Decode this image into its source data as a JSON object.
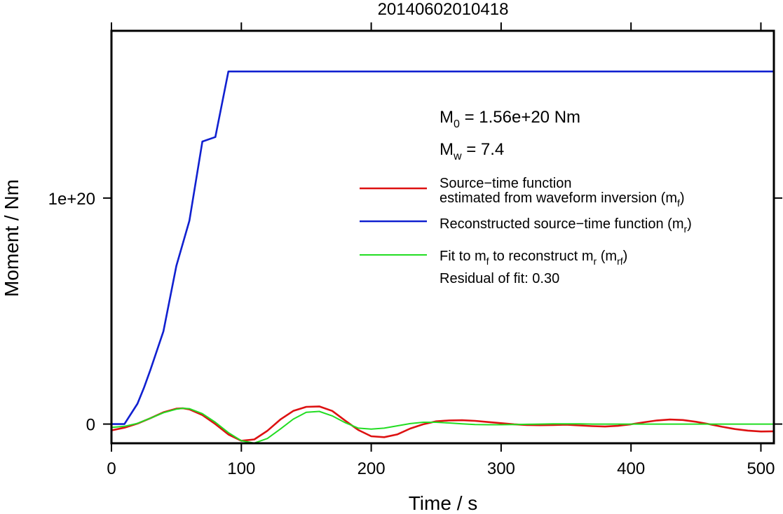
{
  "chart_data": {
    "type": "line",
    "title": "20140602010418",
    "xlabel": "Time / s",
    "ylabel": "Moment / Nm",
    "xlim": [
      0,
      510
    ],
    "ylim": [
      -8.5e+18,
      1.74e+20
    ],
    "grid": false,
    "legend_position": "right",
    "x_ticks": [
      {
        "value": 0,
        "label": "0"
      },
      {
        "value": 100,
        "label": "100"
      },
      {
        "value": 200,
        "label": "200"
      },
      {
        "value": 300,
        "label": "300"
      },
      {
        "value": 400,
        "label": "400"
      },
      {
        "value": 500,
        "label": "500"
      }
    ],
    "y_ticks": [
      {
        "value": 0,
        "label": "0"
      },
      {
        "value": 1e+20,
        "label": "1e+20"
      }
    ],
    "annotations": {
      "m0": {
        "sym": "M",
        "sub": "0",
        "rest": " = 1.56e+20 Nm"
      },
      "mw": {
        "sym": "M",
        "sub": "w",
        "rest": " = 7.4"
      },
      "residual": "Residual of fit: 0.30"
    },
    "series": [
      {
        "id": "red",
        "color": "#dd1111",
        "legend": [
          [
            {
              "t": "Source−time function"
            }
          ],
          [
            {
              "t": "estimated from waveform inversion (m"
            },
            {
              "t": "f",
              "sub": true
            },
            {
              "t": ")"
            }
          ]
        ],
        "points": [
          [
            0,
            -2.8e+18
          ],
          [
            10,
            -1.6e+18
          ],
          [
            20,
            2e+17
          ],
          [
            30,
            2.6e+18
          ],
          [
            40,
            5.2e+18
          ],
          [
            50,
            6.8e+18
          ],
          [
            55,
            7e+18
          ],
          [
            60,
            6.5e+18
          ],
          [
            70,
            4e+18
          ],
          [
            80,
            0
          ],
          [
            90,
            -4.6e+18
          ],
          [
            100,
            -7.4e+18
          ],
          [
            110,
            -6.8e+18
          ],
          [
            120,
            -3e+18
          ],
          [
            130,
            2e+18
          ],
          [
            140,
            5.8e+18
          ],
          [
            150,
            7.6e+18
          ],
          [
            160,
            7.8e+18
          ],
          [
            170,
            5.8e+18
          ],
          [
            180,
            1.5e+18
          ],
          [
            190,
            -2.6e+18
          ],
          [
            200,
            -5.4e+18
          ],
          [
            210,
            -5.8e+18
          ],
          [
            220,
            -4.6e+18
          ],
          [
            230,
            -2e+18
          ],
          [
            240,
            -1e+17
          ],
          [
            250,
            1.2e+18
          ],
          [
            260,
            1.6e+18
          ],
          [
            270,
            1.7e+18
          ],
          [
            280,
            1.4e+18
          ],
          [
            290,
            9e+17
          ],
          [
            300,
            4e+17
          ],
          [
            310,
            -1e+17
          ],
          [
            320,
            -4e+17
          ],
          [
            330,
            -5e+17
          ],
          [
            340,
            -4e+17
          ],
          [
            350,
            -3e+17
          ],
          [
            360,
            -6e+17
          ],
          [
            370,
            -9e+17
          ],
          [
            380,
            -1.1e+18
          ],
          [
            390,
            -8e+17
          ],
          [
            400,
            -1e+17
          ],
          [
            410,
            8e+17
          ],
          [
            420,
            1.6e+18
          ],
          [
            430,
            2e+18
          ],
          [
            440,
            1.8e+18
          ],
          [
            450,
            1e+18
          ],
          [
            460,
            0
          ],
          [
            470,
            -1.2e+18
          ],
          [
            480,
            -2.2e+18
          ],
          [
            490,
            -2.9e+18
          ],
          [
            500,
            -3.3e+18
          ],
          [
            510,
            -3.2e+18
          ]
        ]
      },
      {
        "id": "blue",
        "color": "#1020d0",
        "legend": [
          [
            {
              "t": "Reconstructed source−time function (m"
            },
            {
              "t": "r",
              "sub": true
            },
            {
              "t": ")"
            }
          ]
        ],
        "points": [
          [
            0,
            0
          ],
          [
            10,
            0
          ],
          [
            20,
            9e+18
          ],
          [
            25,
            1.6e+19
          ],
          [
            30,
            2.4e+19
          ],
          [
            40,
            4.1e+19
          ],
          [
            50,
            7e+19
          ],
          [
            60,
            9e+19
          ],
          [
            70,
            1.25e+20
          ],
          [
            80,
            1.27e+20
          ],
          [
            90,
            1.56e+20
          ],
          [
            510,
            1.56e+20
          ]
        ]
      },
      {
        "id": "green",
        "color": "#22dd22",
        "legend": [
          [
            {
              "t": "Fit to m"
            },
            {
              "t": "f",
              "sub": true
            },
            {
              "t": " to reconstruct m"
            },
            {
              "t": "r",
              "sub": true
            },
            {
              "t": " (m"
            },
            {
              "t": "rf",
              "sub": true
            },
            {
              "t": ")"
            }
          ]
        ],
        "points": [
          [
            0,
            -1.5e+18
          ],
          [
            10,
            -1e+18
          ],
          [
            20,
            3e+17
          ],
          [
            30,
            2.6e+18
          ],
          [
            40,
            5e+18
          ],
          [
            50,
            6.6e+18
          ],
          [
            55,
            7e+18
          ],
          [
            60,
            6.8e+18
          ],
          [
            70,
            4.6e+18
          ],
          [
            80,
            8e+17
          ],
          [
            90,
            -3.8e+18
          ],
          [
            100,
            -7.4e+18
          ],
          [
            110,
            -8.4e+18
          ],
          [
            120,
            -6.4e+18
          ],
          [
            130,
            -2.2e+18
          ],
          [
            140,
            2.2e+18
          ],
          [
            150,
            5.2e+18
          ],
          [
            160,
            5.6e+18
          ],
          [
            170,
            3.6e+18
          ],
          [
            180,
            6e+17
          ],
          [
            190,
            -1.8e+18
          ],
          [
            200,
            -2.2e+18
          ],
          [
            210,
            -1.8e+18
          ],
          [
            220,
            -8e+17
          ],
          [
            230,
            2e+17
          ],
          [
            240,
            8e+17
          ],
          [
            250,
            8e+17
          ],
          [
            260,
            5e+17
          ],
          [
            270,
            1e+17
          ],
          [
            280,
            -2e+17
          ],
          [
            290,
            -3e+17
          ],
          [
            300,
            -3e+17
          ],
          [
            310,
            -2e+17
          ],
          [
            320,
            -1e+17
          ],
          [
            330,
            0
          ],
          [
            340,
            1e+17
          ],
          [
            350,
            1e+17
          ],
          [
            360,
            1e+17
          ],
          [
            370,
            0
          ],
          [
            380,
            0
          ],
          [
            390,
            0
          ],
          [
            400,
            0
          ],
          [
            410,
            0
          ],
          [
            420,
            0
          ],
          [
            430,
            0
          ],
          [
            440,
            0
          ],
          [
            450,
            0
          ],
          [
            460,
            0
          ],
          [
            470,
            0
          ],
          [
            480,
            0
          ],
          [
            490,
            0
          ],
          [
            500,
            0
          ],
          [
            510,
            0
          ]
        ]
      }
    ]
  }
}
